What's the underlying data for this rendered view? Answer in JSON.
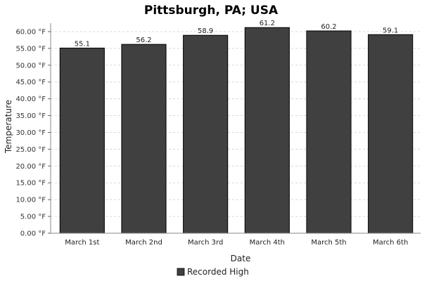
{
  "chart_data": {
    "type": "bar",
    "title": "Pittsburgh, PA; USA",
    "xlabel": "Date",
    "ylabel": "Temperature",
    "categories": [
      "March 1st",
      "March 2nd",
      "March 3rd",
      "March 4th",
      "March 5th",
      "March 6th"
    ],
    "series": [
      {
        "name": "Recorded High",
        "values": [
          55.1,
          56.2,
          58.9,
          61.2,
          60.2,
          59.1
        ],
        "color": "#404040"
      }
    ],
    "ylim": [
      0,
      62.5
    ],
    "yticks": [
      0,
      5,
      10,
      15,
      20,
      25,
      30,
      35,
      40,
      45,
      50,
      55,
      60
    ],
    "ytick_labels": [
      "0.00 °F",
      "5.00 °F",
      "10.00 °F",
      "15.00 °F",
      "20.00 °F",
      "25.00 °F",
      "30.00 °F",
      "35.00 °F",
      "40.00 °F",
      "45.00 °F",
      "50.00 °F",
      "55.00 °F",
      "60.00 °F"
    ],
    "data_labels": [
      "55.1",
      "56.2",
      "58.9",
      "61.2",
      "60.2",
      "59.1"
    ],
    "grid": true,
    "legend_position": "bottom"
  }
}
